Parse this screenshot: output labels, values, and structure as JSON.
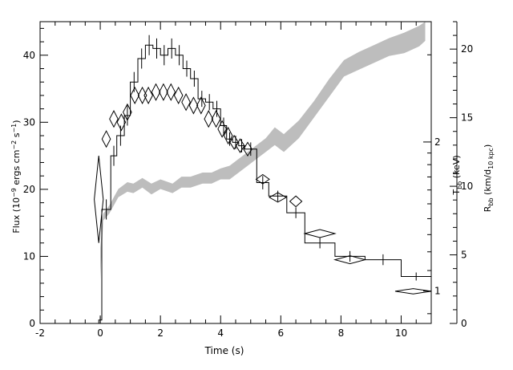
{
  "chart_data": {
    "type": "line",
    "xlabel": "Time (s)",
    "ylabel_left": "Flux (10⁻⁹ ergs cm⁻² s⁻¹)",
    "ylabel_right_temp": "Tₐₐ (keV)",
    "ylabel_right_radius": "Rₐₐ (km/d₁₀ ₖₚₔ)",
    "xlim": [
      -2,
      11
    ],
    "ylim_flux": [
      0,
      45
    ],
    "ylim_radius": [
      0,
      22
    ],
    "x_ticks": [
      "-2",
      "0",
      "2",
      "4",
      "6",
      "8",
      "10"
    ],
    "y_ticks_flux": [
      "0",
      "10",
      "20",
      "30",
      "40"
    ],
    "y_ticks_radius": [
      "0",
      "5",
      "10",
      "15",
      "20"
    ],
    "y_ticks_temp": [
      {
        "value": 1,
        "label": "1"
      },
      {
        "value": 2,
        "label": "2"
      }
    ],
    "grid": false,
    "series": [
      {
        "kind": "step",
        "edges": [
          -0.05,
          0.05,
          0.35,
          0.55,
          0.8,
          1.0,
          1.25,
          1.5,
          1.75,
          2.0,
          2.25,
          2.5,
          2.75,
          3.0,
          3.25,
          3.5,
          3.75,
          4.0,
          4.2,
          4.4,
          4.6,
          4.8,
          5.2,
          5.6,
          6.2,
          6.8,
          7.8,
          8.8,
          10.0,
          11.0
        ],
        "values": [
          0.5,
          17,
          25,
          28,
          31,
          36,
          39.5,
          41.5,
          41,
          40,
          41,
          40,
          38,
          36.5,
          33.5,
          33,
          32,
          29.5,
          27.5,
          27,
          26.5,
          26,
          21,
          19,
          16.5,
          12,
          10,
          9.5,
          7
        ],
        "errors": [
          0.5,
          1.5,
          1.5,
          1.5,
          1.5,
          1.5,
          1.5,
          1.5,
          1.5,
          1.5,
          1.5,
          1.5,
          1.2,
          1.2,
          1.2,
          1.2,
          1.2,
          1.2,
          1.0,
          1.0,
          1.0,
          1.0,
          1.0,
          0.8,
          0.8,
          0.8,
          0.8,
          0.8,
          0.6
        ]
      },
      {
        "kind": "diamonds",
        "points": [
          {
            "x": -0.05,
            "y": 18.5,
            "dx": 0.15,
            "dy": 6.5
          },
          {
            "x": 0.2,
            "y": 27.5,
            "dx": 0.14,
            "dy": 1.2
          },
          {
            "x": 0.45,
            "y": 30.5,
            "dx": 0.14,
            "dy": 1.2
          },
          {
            "x": 0.7,
            "y": 30.0,
            "dx": 0.14,
            "dy": 1.2
          },
          {
            "x": 0.9,
            "y": 31.5,
            "dx": 0.14,
            "dy": 1.2
          },
          {
            "x": 1.15,
            "y": 34.0,
            "dx": 0.14,
            "dy": 1.2
          },
          {
            "x": 1.4,
            "y": 34.0,
            "dx": 0.14,
            "dy": 1.2
          },
          {
            "x": 1.6,
            "y": 34.0,
            "dx": 0.14,
            "dy": 1.2
          },
          {
            "x": 1.85,
            "y": 34.5,
            "dx": 0.14,
            "dy": 1.2
          },
          {
            "x": 2.1,
            "y": 34.5,
            "dx": 0.14,
            "dy": 1.2
          },
          {
            "x": 2.35,
            "y": 34.5,
            "dx": 0.14,
            "dy": 1.2
          },
          {
            "x": 2.6,
            "y": 34.0,
            "dx": 0.14,
            "dy": 1.2
          },
          {
            "x": 2.85,
            "y": 33.0,
            "dx": 0.14,
            "dy": 1.2
          },
          {
            "x": 3.1,
            "y": 32.5,
            "dx": 0.14,
            "dy": 1.2
          },
          {
            "x": 3.35,
            "y": 32.5,
            "dx": 0.14,
            "dy": 1.2
          },
          {
            "x": 3.6,
            "y": 30.5,
            "dx": 0.14,
            "dy": 1.2
          },
          {
            "x": 3.85,
            "y": 30.5,
            "dx": 0.14,
            "dy": 1.2
          },
          {
            "x": 4.05,
            "y": 29.0,
            "dx": 0.14,
            "dy": 1.2
          },
          {
            "x": 4.25,
            "y": 28.0,
            "dx": 0.14,
            "dy": 1.2
          },
          {
            "x": 4.45,
            "y": 27.0,
            "dx": 0.14,
            "dy": 1.0
          },
          {
            "x": 4.65,
            "y": 26.5,
            "dx": 0.14,
            "dy": 1.0
          },
          {
            "x": 4.9,
            "y": 26.0,
            "dx": 0.14,
            "dy": 1.0
          },
          {
            "x": 5.4,
            "y": 21.5,
            "dx": 0.22,
            "dy": 0.7
          },
          {
            "x": 5.9,
            "y": 18.8,
            "dx": 0.28,
            "dy": 0.7
          },
          {
            "x": 6.5,
            "y": 18.2,
            "dx": 0.2,
            "dy": 0.8
          },
          {
            "x": 7.3,
            "y": 13.4,
            "dx": 0.5,
            "dy": 0.6
          },
          {
            "x": 8.3,
            "y": 9.5,
            "dx": 0.5,
            "dy": 0.6
          },
          {
            "x": 10.4,
            "y": 4.8,
            "dx": 0.6,
            "dy": 0.4
          }
        ]
      },
      {
        "kind": "band",
        "x": [
          0.0,
          0.1,
          0.3,
          0.6,
          0.9,
          1.1,
          1.4,
          1.7,
          2.0,
          2.4,
          2.7,
          3.0,
          3.4,
          3.7,
          4.0,
          4.3,
          4.6,
          4.9,
          5.2,
          5.5,
          5.8,
          6.1,
          6.6,
          7.1,
          7.6,
          8.1,
          8.6,
          9.1,
          9.6,
          10.1,
          10.6,
          10.8
        ],
        "low": [
          3.2,
          7.5,
          8.0,
          9.2,
          9.6,
          9.5,
          9.9,
          9.4,
          9.8,
          9.5,
          9.9,
          9.9,
          10.2,
          10.2,
          10.5,
          10.5,
          11.0,
          11.5,
          12.0,
          12.5,
          13.0,
          12.5,
          13.5,
          15.0,
          16.5,
          18.0,
          18.5,
          19.0,
          19.5,
          19.7,
          20.2,
          20.6
        ],
        "high": [
          5.5,
          8.0,
          8.6,
          9.8,
          10.3,
          10.2,
          10.6,
          10.2,
          10.5,
          10.2,
          10.7,
          10.7,
          11.0,
          11.0,
          11.3,
          11.5,
          12.0,
          12.5,
          13.0,
          13.5,
          14.3,
          13.8,
          14.8,
          16.2,
          17.8,
          19.2,
          19.8,
          20.3,
          20.8,
          21.2,
          21.7,
          22.0
        ]
      }
    ]
  }
}
